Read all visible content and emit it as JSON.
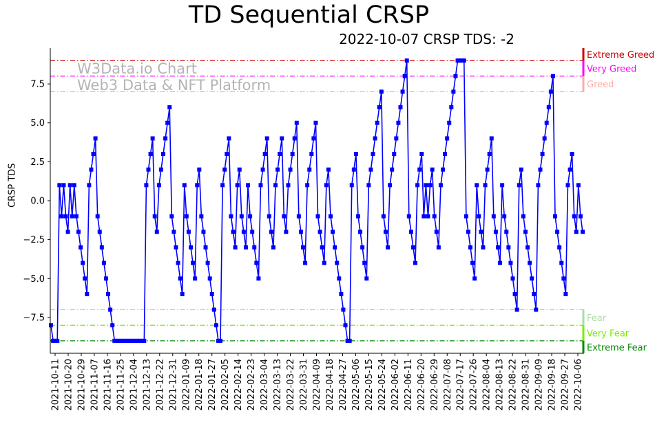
{
  "chart_data": {
    "type": "line",
    "title": "TD Sequential CRSP",
    "subtitle": "2022-10-07 CRSP TDS: -2",
    "ylabel": "CRSP TDS",
    "xlabel": "",
    "ylim": [
      -9.8,
      9.8
    ],
    "yticks": [
      -7.5,
      -5.0,
      -2.5,
      0.0,
      2.5,
      5.0,
      7.5
    ],
    "ytick_labels": [
      "−7.5",
      "−5.0",
      "−2.5",
      "0.0",
      "2.5",
      "5.0",
      "7.5"
    ],
    "xtick_labels": [
      "2021-10-11",
      "2021-10-20",
      "2021-10-29",
      "2021-11-07",
      "2021-11-16",
      "2021-11-25",
      "2021-12-04",
      "2021-12-13",
      "2021-12-22",
      "2021-12-31",
      "2022-01-09",
      "2022-01-18",
      "2022-01-27",
      "2022-02-05",
      "2022-02-14",
      "2022-02-23",
      "2022-03-04",
      "2022-03-13",
      "2022-03-22",
      "2022-03-31",
      "2022-04-09",
      "2022-04-18",
      "2022-04-27",
      "2022-05-06",
      "2022-05-15",
      "2022-05-24",
      "2022-06-02",
      "2022-06-11",
      "2022-06-20",
      "2022-06-29",
      "2022-07-08",
      "2022-07-17",
      "2022-07-26",
      "2022-08-04",
      "2022-08-13",
      "2022-08-22",
      "2022-08-31",
      "2022-09-09",
      "2022-09-18",
      "2022-09-27",
      "2022-10-06"
    ],
    "series": [
      {
        "name": "CRSP TDS",
        "color": "#0000ff",
        "values": [
          -8,
          -9,
          -9,
          -9,
          1,
          -1,
          1,
          -1,
          -2,
          1,
          -1,
          1,
          -1,
          -2,
          -3,
          -4,
          -5,
          -6,
          1,
          2,
          3,
          4,
          -1,
          -2,
          -3,
          -4,
          -5,
          -6,
          -7,
          -8,
          -9,
          -9,
          -9,
          -9,
          -9,
          -9,
          -9,
          -9,
          -9,
          -9,
          -9,
          -9,
          -9,
          -9,
          -9,
          1,
          2,
          3,
          4,
          -1,
          -2,
          1,
          2,
          3,
          4,
          5,
          6,
          -1,
          -2,
          -3,
          -4,
          -5,
          -6,
          1,
          -1,
          -2,
          -3,
          -4,
          -5,
          1,
          2,
          -1,
          -2,
          -3,
          -4,
          -5,
          -6,
          -7,
          -8,
          -9,
          -9,
          1,
          2,
          3,
          4,
          -1,
          -2,
          -3,
          1,
          2,
          -1,
          -2,
          -3,
          1,
          -1,
          -2,
          -3,
          -4,
          -5,
          1,
          2,
          3,
          4,
          -1,
          -2,
          -3,
          1,
          2,
          3,
          4,
          -1,
          -2,
          1,
          2,
          3,
          4,
          5,
          -1,
          -2,
          -3,
          -4,
          1,
          2,
          3,
          4,
          5,
          -1,
          -2,
          -3,
          -4,
          1,
          2,
          -1,
          -2,
          -3,
          -4,
          -5,
          -6,
          -7,
          -8,
          -9,
          -9,
          1,
          2,
          3,
          -1,
          -2,
          -3,
          -4,
          -5,
          1,
          2,
          3,
          4,
          5,
          6,
          7,
          -1,
          -2,
          -3,
          1,
          2,
          3,
          4,
          5,
          6,
          7,
          8,
          9,
          -1,
          -2,
          -3,
          -4,
          1,
          2,
          3,
          -1,
          1,
          -1,
          1,
          2,
          -1,
          -2,
          -3,
          1,
          2,
          3,
          4,
          5,
          6,
          7,
          8,
          9,
          9,
          9,
          9,
          -1,
          -2,
          -3,
          -4,
          -5,
          1,
          -1,
          -2,
          -3,
          1,
          2,
          3,
          4,
          -1,
          -2,
          -3,
          -4,
          1,
          -1,
          -2,
          -3,
          -4,
          -5,
          -6,
          -7,
          1,
          2,
          -1,
          -2,
          -3,
          -4,
          -5,
          -6,
          -7,
          1,
          2,
          3,
          4,
          5,
          6,
          7,
          8,
          -1,
          -2,
          -3,
          -4,
          -5,
          -6,
          1,
          2,
          3,
          -1,
          -2,
          1,
          -1,
          -2
        ]
      }
    ],
    "levels": [
      {
        "name": "Extreme Greed",
        "value": 9,
        "color": "#cc0000"
      },
      {
        "name": "Very Greed",
        "value": 8,
        "color": "#ff00ff"
      },
      {
        "name": "Greed",
        "value": 7,
        "color": "#ffaaaa"
      },
      {
        "name": "Fear",
        "value": -7,
        "color": "#aaddaa"
      },
      {
        "name": "Very Fear",
        "value": -8,
        "color": "#77ee00"
      },
      {
        "name": "Extreme Fear",
        "value": -9,
        "color": "#008800"
      }
    ]
  },
  "watermark": {
    "line1": "W3Data.io Chart",
    "line2": "Web3 Data & NFT Platform"
  }
}
